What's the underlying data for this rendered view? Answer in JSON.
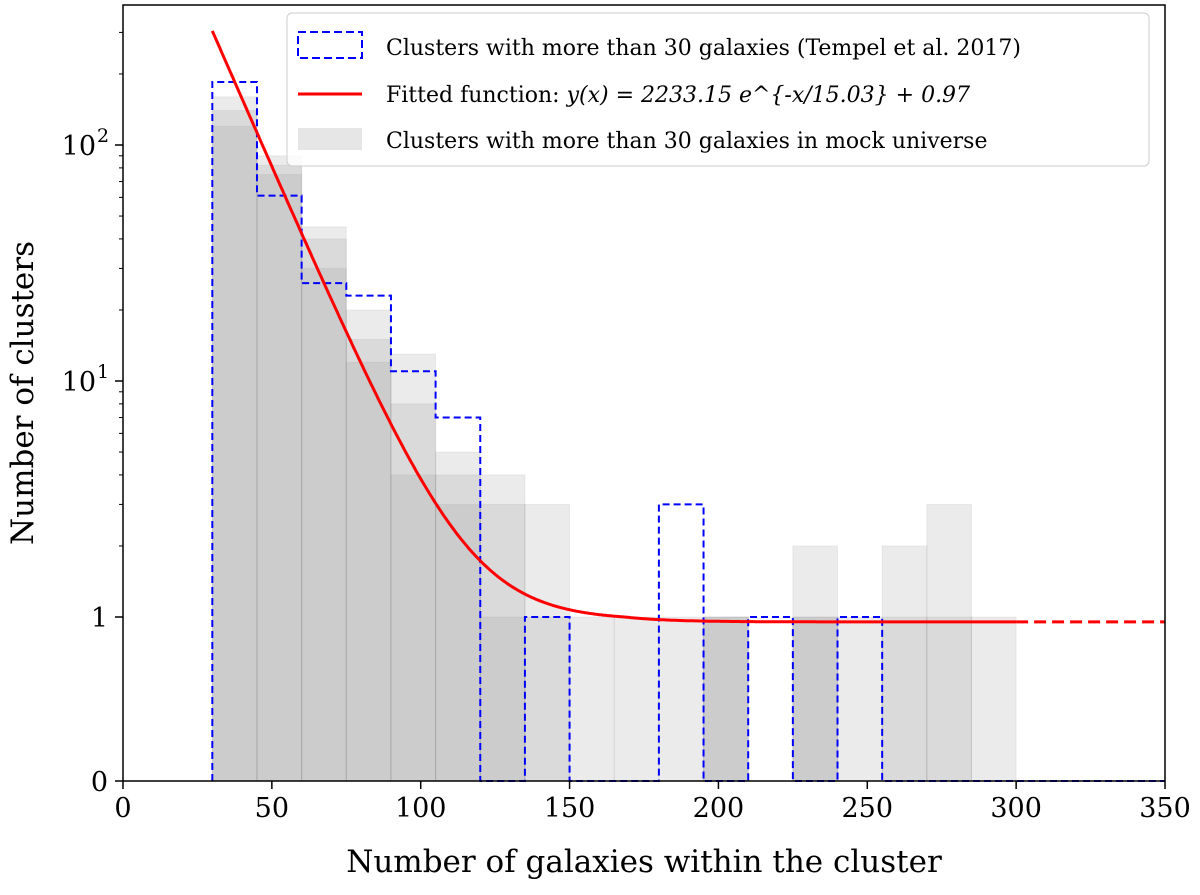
{
  "chart_data": {
    "type": "bar",
    "xlabel": "Number of galaxies within the cluster",
    "ylabel": "Number of clusters",
    "xlim": [
      0,
      350
    ],
    "ylim": [
      0,
      392
    ],
    "yscale": "symlog (linear 0-1, log above)",
    "xticks": [
      "0",
      "50",
      "100",
      "150",
      "200",
      "250",
      "300",
      "350"
    ],
    "yticks": [
      {
        "value": 0,
        "label": "0"
      },
      {
        "value": 1,
        "label": "1"
      },
      {
        "value": 10,
        "label": "10",
        "exp": "1"
      },
      {
        "value": 100,
        "label": "10",
        "exp": "2"
      }
    ],
    "bin_edges": [
      30,
      45,
      60,
      75,
      90,
      105,
      120,
      135,
      150,
      165,
      180,
      195,
      210,
      225,
      240,
      255,
      270,
      285,
      300,
      315,
      330,
      345,
      350
    ],
    "observed": {
      "name": "Clusters with more than 30 galaxies (Tempel et al. 2017)",
      "color": "#0000ff",
      "values": [
        185,
        61,
        26,
        23,
        11,
        7,
        0,
        1,
        0,
        0,
        3,
        0,
        1,
        0,
        1,
        0,
        0,
        0,
        0,
        0,
        0,
        0
      ]
    },
    "mock": {
      "name": "Clusters with more than 30 galaxies in mock universe",
      "color": "#808080",
      "realizations": [
        [
          160,
          90,
          45,
          20,
          13,
          5,
          4,
          3,
          1,
          1,
          1,
          1,
          0,
          2,
          1,
          2,
          3,
          1
        ],
        [
          140,
          82,
          40,
          15,
          8,
          4,
          3,
          1,
          0,
          0,
          0,
          1,
          0,
          1,
          0,
          1,
          1,
          0
        ],
        [
          120,
          75,
          30,
          12,
          4,
          3,
          1,
          0,
          0,
          0,
          0,
          1,
          0,
          1,
          0,
          0,
          0,
          0
        ]
      ]
    },
    "fit": {
      "name_prefix": "Fitted function: ",
      "formula": "y(x) = 2233.15 e^{-x/15.03} + 0.97",
      "A": 2233.15,
      "tau": 15.03,
      "c": 0.97,
      "x_solid": [
        30,
        300
      ],
      "x_dashed": [
        300,
        350
      ],
      "color": "#ff0000"
    },
    "legend": "top-right",
    "grid": false
  }
}
